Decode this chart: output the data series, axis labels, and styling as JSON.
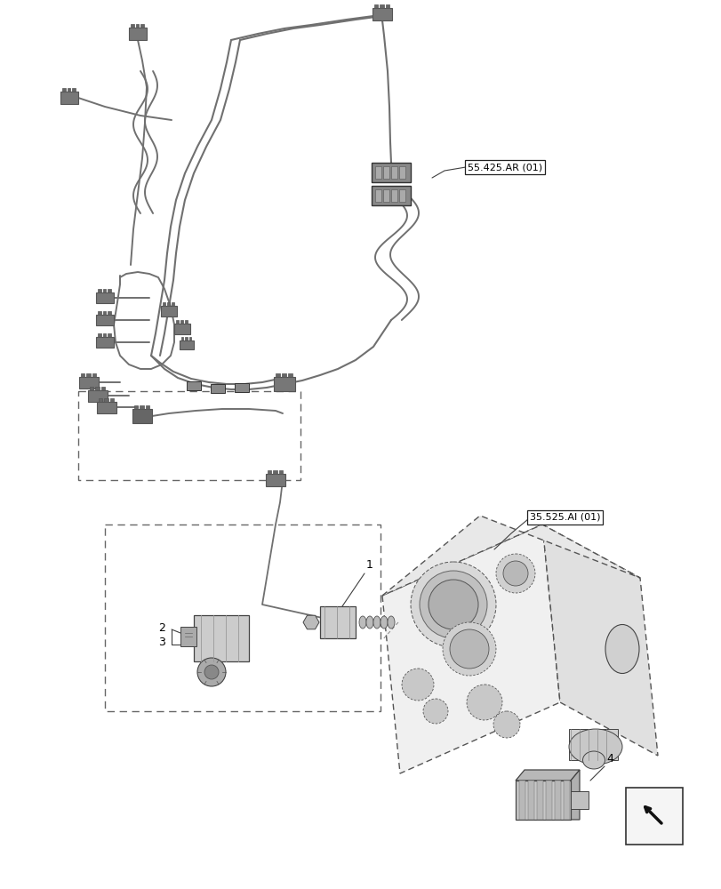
{
  "bg_color": "#ffffff",
  "label1": "55.425.AR (01)",
  "label2": "35.525.AI (01)",
  "line_color": "#404040",
  "text_color": "#000000",
  "box_facecolor": "#ffffff",
  "box_edgecolor": "#222222",
  "connector_color": "#555555",
  "wire_color": "#707070",
  "part_gray": "#b0b0b0",
  "dark_gray": "#404040"
}
